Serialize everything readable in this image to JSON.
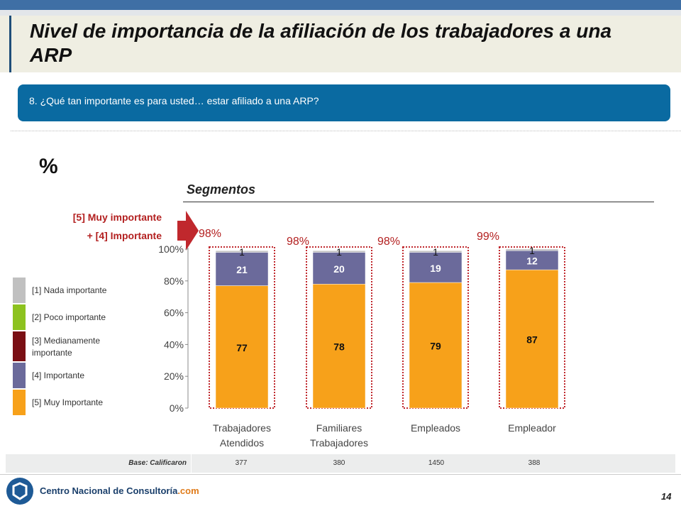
{
  "title": "Nivel de importancia de la afiliación de los trabajadores a una ARP",
  "question": "8. ¿Qué tan importante es para usted… estar afiliado a una ARP?",
  "percent_symbol": "%",
  "segments_title": "Segmentos",
  "top2_label_line1": "[5] Muy importante",
  "top2_label_line2": "+ [4]  Importante",
  "legend": [
    {
      "label": "[1]  Nada importante",
      "color": "#c0c0c0"
    },
    {
      "label": "[2]  Poco importante",
      "color": "#8dc21f"
    },
    {
      "label": "[3]  Medianamente importante",
      "color": "#7a0f14"
    },
    {
      "label": "[4]  Importante",
      "color": "#6b6a9b"
    },
    {
      "label": "[5]  Muy Importante",
      "color": "#f7a11a"
    }
  ],
  "chart_data": {
    "type": "bar",
    "stacked": true,
    "categories": [
      "Trabajadores Atendidos",
      "Familiares Trabajadores",
      "Empleados",
      "Empleador"
    ],
    "ylim": [
      0,
      100
    ],
    "yticks": [
      "0%",
      "20%",
      "40%",
      "60%",
      "80%",
      "100%"
    ],
    "series": [
      {
        "name": "[5]  Muy Importante",
        "color": "#f7a11a",
        "values": [
          77,
          78,
          79,
          87
        ]
      },
      {
        "name": "[4]  Importante",
        "color": "#6b6a9b",
        "values": [
          21,
          20,
          19,
          12
        ]
      },
      {
        "name": "[3]  Medianamente importante",
        "color": "#7a0f14",
        "values": [
          0,
          0,
          0,
          0
        ]
      },
      {
        "name": "[2]  Poco importante",
        "color": "#8dc21f",
        "values": [
          0,
          0,
          0,
          0
        ]
      },
      {
        "name": "[1]  Nada importante",
        "color": "#c0c0c0",
        "values": [
          1,
          1,
          1,
          1
        ]
      }
    ],
    "top2": [
      "98%",
      "98%",
      "98%",
      "99%"
    ]
  },
  "base": {
    "label": "Base:  Calificaron",
    "values": [
      "377",
      "380",
      "1450",
      "388"
    ]
  },
  "footer": {
    "logo_text_main": "Centro Nacional de Consultoría",
    "logo_text_suffix": ".com",
    "page_number": "14"
  }
}
